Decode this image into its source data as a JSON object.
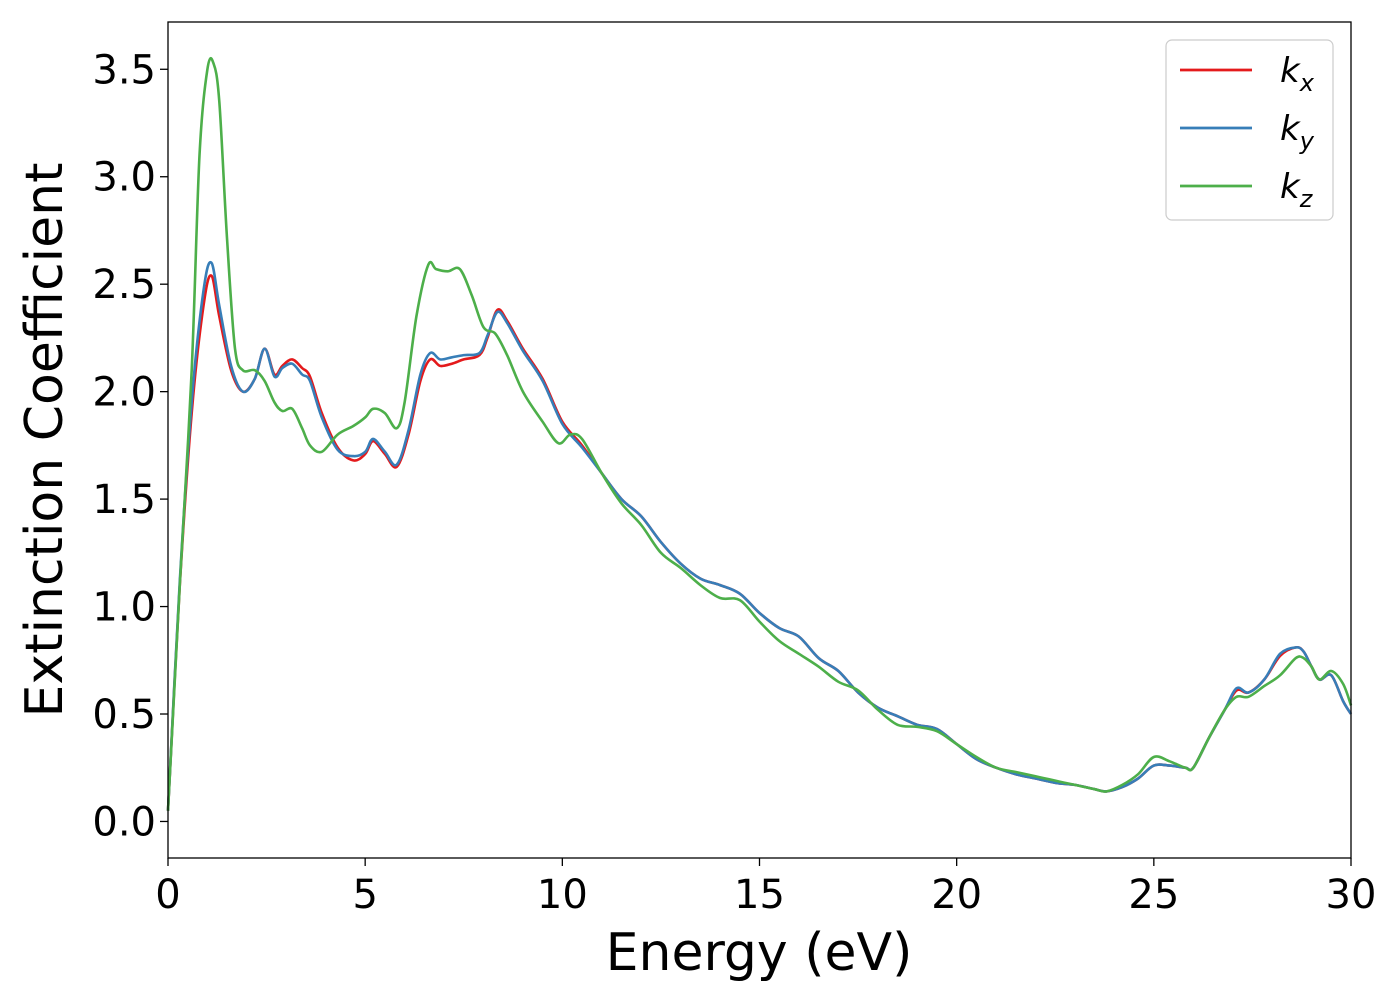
{
  "chart_data": {
    "type": "line",
    "xlabel": "Energy (eV)",
    "ylabel": "Extinction Coefficient",
    "xlim": [
      0,
      30
    ],
    "ylim": [
      -0.17,
      3.72
    ],
    "xticks": [
      0,
      5,
      10,
      15,
      20,
      25,
      30
    ],
    "xtick_labels": [
      "0",
      "5",
      "10",
      "15",
      "20",
      "25",
      "30"
    ],
    "yticks": [
      0.0,
      0.5,
      1.0,
      1.5,
      2.0,
      2.5,
      3.0,
      3.5
    ],
    "ytick_labels": [
      "0.0",
      "0.5",
      "1.0",
      "1.5",
      "2.0",
      "2.5",
      "3.0",
      "3.5"
    ],
    "grid": false,
    "legend_position": "top-right",
    "series": [
      {
        "name": "k",
        "subscript": "x",
        "color": "#e41a1c",
        "x": [
          0,
          0.3,
          0.6,
          0.9,
          1.1,
          1.3,
          1.6,
          1.9,
          2.2,
          2.45,
          2.7,
          2.9,
          3.15,
          3.4,
          3.6,
          3.9,
          4.3,
          4.7,
          5.0,
          5.2,
          5.5,
          5.8,
          6.1,
          6.4,
          6.65,
          6.9,
          7.2,
          7.5,
          7.9,
          8.1,
          8.35,
          8.6,
          9.0,
          9.5,
          10.0,
          10.5,
          11.0,
          11.5,
          12.0,
          12.5,
          13.0,
          13.5,
          14.0,
          14.5,
          15.0,
          15.5,
          16.0,
          16.5,
          17.0,
          17.5,
          18.0,
          18.5,
          19.0,
          19.5,
          20.0,
          20.5,
          21.0,
          21.5,
          22.0,
          22.5,
          23.0,
          23.5,
          23.8,
          24.2,
          24.6,
          25.0,
          25.4,
          25.8,
          26.0,
          26.4,
          26.8,
          27.1,
          27.4,
          27.8,
          28.2,
          28.6,
          28.8,
          29.0,
          29.2,
          29.5,
          29.8,
          30.0
        ],
        "values": [
          0.05,
          1.1,
          1.9,
          2.4,
          2.54,
          2.35,
          2.1,
          2.0,
          2.06,
          2.2,
          2.08,
          2.12,
          2.15,
          2.11,
          2.07,
          1.9,
          1.74,
          1.68,
          1.71,
          1.77,
          1.71,
          1.65,
          1.8,
          2.05,
          2.15,
          2.12,
          2.13,
          2.15,
          2.17,
          2.25,
          2.38,
          2.33,
          2.2,
          2.06,
          1.86,
          1.75,
          1.62,
          1.5,
          1.42,
          1.3,
          1.2,
          1.13,
          1.1,
          1.06,
          0.97,
          0.9,
          0.86,
          0.76,
          0.7,
          0.6,
          0.53,
          0.49,
          0.45,
          0.43,
          0.36,
          0.29,
          0.25,
          0.22,
          0.2,
          0.18,
          0.17,
          0.15,
          0.14,
          0.16,
          0.2,
          0.26,
          0.26,
          0.25,
          0.25,
          0.39,
          0.52,
          0.61,
          0.6,
          0.66,
          0.77,
          0.81,
          0.79,
          0.72,
          0.66,
          0.68,
          0.56,
          0.5
        ]
      },
      {
        "name": "k",
        "subscript": "y",
        "color": "#377eb8",
        "x": [
          0,
          0.3,
          0.6,
          0.9,
          1.1,
          1.3,
          1.6,
          1.9,
          2.2,
          2.45,
          2.7,
          2.9,
          3.15,
          3.4,
          3.6,
          3.9,
          4.3,
          4.7,
          5.0,
          5.2,
          5.5,
          5.8,
          6.1,
          6.4,
          6.65,
          6.9,
          7.2,
          7.5,
          7.9,
          8.1,
          8.35,
          8.6,
          9.0,
          9.5,
          10.0,
          10.5,
          11.0,
          11.5,
          12.0,
          12.5,
          13.0,
          13.5,
          14.0,
          14.5,
          15.0,
          15.5,
          16.0,
          16.5,
          17.0,
          17.5,
          18.0,
          18.5,
          19.0,
          19.5,
          20.0,
          20.5,
          21.0,
          21.5,
          22.0,
          22.5,
          23.0,
          23.5,
          23.8,
          24.2,
          24.6,
          25.0,
          25.4,
          25.8,
          26.0,
          26.4,
          26.8,
          27.1,
          27.4,
          27.8,
          28.2,
          28.6,
          28.8,
          29.0,
          29.2,
          29.5,
          29.8,
          30.0
        ],
        "values": [
          0.05,
          1.12,
          1.95,
          2.47,
          2.6,
          2.4,
          2.12,
          2.0,
          2.06,
          2.2,
          2.07,
          2.11,
          2.13,
          2.08,
          2.05,
          1.88,
          1.73,
          1.7,
          1.72,
          1.78,
          1.72,
          1.66,
          1.82,
          2.08,
          2.18,
          2.15,
          2.16,
          2.17,
          2.18,
          2.26,
          2.37,
          2.32,
          2.19,
          2.05,
          1.85,
          1.74,
          1.62,
          1.5,
          1.42,
          1.3,
          1.2,
          1.13,
          1.1,
          1.06,
          0.97,
          0.9,
          0.86,
          0.76,
          0.7,
          0.6,
          0.53,
          0.49,
          0.45,
          0.43,
          0.36,
          0.29,
          0.25,
          0.22,
          0.2,
          0.18,
          0.17,
          0.15,
          0.14,
          0.16,
          0.2,
          0.26,
          0.26,
          0.25,
          0.25,
          0.39,
          0.52,
          0.62,
          0.6,
          0.66,
          0.78,
          0.81,
          0.79,
          0.72,
          0.66,
          0.68,
          0.56,
          0.5
        ]
      },
      {
        "name": "k",
        "subscript": "z",
        "color": "#4daf4a",
        "x": [
          0,
          0.3,
          0.6,
          0.8,
          1.0,
          1.15,
          1.3,
          1.5,
          1.7,
          1.9,
          2.2,
          2.45,
          2.7,
          2.9,
          3.15,
          3.4,
          3.6,
          3.9,
          4.3,
          4.7,
          5.0,
          5.2,
          5.5,
          5.8,
          6.0,
          6.3,
          6.6,
          6.8,
          7.1,
          7.4,
          7.7,
          8.0,
          8.3,
          8.6,
          9.0,
          9.5,
          9.9,
          10.2,
          10.5,
          11.0,
          11.5,
          12.0,
          12.5,
          13.0,
          13.5,
          14.0,
          14.5,
          15.0,
          15.5,
          16.0,
          16.5,
          17.0,
          17.5,
          18.0,
          18.5,
          19.0,
          19.5,
          20.0,
          20.5,
          21.0,
          21.5,
          22.0,
          22.5,
          23.0,
          23.5,
          23.8,
          24.2,
          24.6,
          25.0,
          25.4,
          25.8,
          26.0,
          26.4,
          26.8,
          27.1,
          27.4,
          27.8,
          28.2,
          28.6,
          28.8,
          29.0,
          29.2,
          29.5,
          29.8,
          30.0
        ],
        "values": [
          0.05,
          1.1,
          2.1,
          3.1,
          3.5,
          3.53,
          3.35,
          2.7,
          2.2,
          2.1,
          2.1,
          2.05,
          1.95,
          1.91,
          1.92,
          1.83,
          1.75,
          1.72,
          1.8,
          1.84,
          1.88,
          1.92,
          1.9,
          1.83,
          1.95,
          2.35,
          2.59,
          2.57,
          2.56,
          2.57,
          2.45,
          2.3,
          2.27,
          2.17,
          2.0,
          1.86,
          1.76,
          1.8,
          1.78,
          1.62,
          1.48,
          1.38,
          1.25,
          1.18,
          1.1,
          1.04,
          1.03,
          0.93,
          0.84,
          0.78,
          0.72,
          0.65,
          0.61,
          0.52,
          0.45,
          0.44,
          0.42,
          0.36,
          0.3,
          0.25,
          0.23,
          0.21,
          0.19,
          0.17,
          0.15,
          0.14,
          0.17,
          0.22,
          0.3,
          0.28,
          0.25,
          0.25,
          0.39,
          0.52,
          0.58,
          0.58,
          0.63,
          0.68,
          0.76,
          0.76,
          0.72,
          0.66,
          0.7,
          0.64,
          0.54
        ]
      }
    ]
  }
}
